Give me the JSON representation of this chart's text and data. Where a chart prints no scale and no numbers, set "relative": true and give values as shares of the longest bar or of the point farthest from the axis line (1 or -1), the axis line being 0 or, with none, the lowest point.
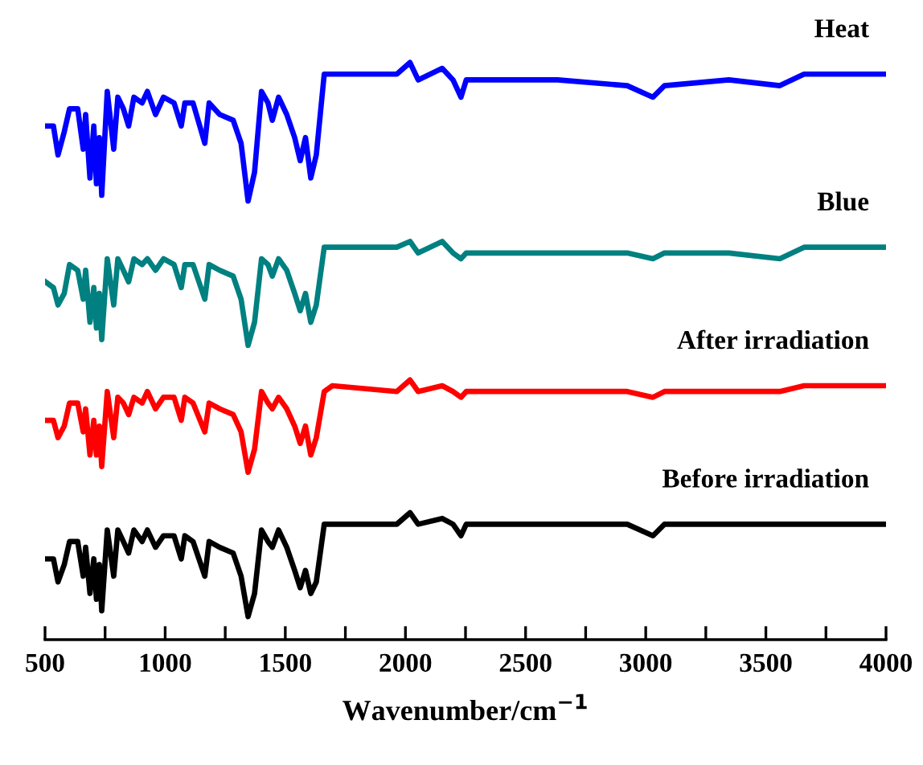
{
  "chart_data": {
    "type": "line",
    "relative": true,
    "xlabel": "Wavenumber/cm$^{−1}$",
    "x": [
      502,
      535,
      554,
      580,
      602,
      636,
      659,
      669,
      687,
      703,
      714,
      726,
      736,
      759,
      786,
      803,
      826,
      848,
      870,
      904,
      926,
      960,
      993,
      1037,
      1067,
      1082,
      1116,
      1165,
      1183,
      1227,
      1283,
      1316,
      1345,
      1372,
      1401,
      1428,
      1446,
      1472,
      1506,
      1539,
      1562,
      1584,
      1606,
      1629,
      1662,
      1696,
      1964,
      2019,
      2053,
      2153,
      2198,
      2231,
      2253,
      2633,
      2923,
      3030,
      3078,
      3346,
      3558,
      3659,
      3993
    ],
    "xlim": [
      500,
      4000
    ],
    "xticks": [
      500,
      {
        "value": 750,
        "label": null
      },
      1000,
      {
        "value": 1250,
        "label": null
      },
      1500,
      {
        "value": 1750,
        "label": null
      },
      2000,
      {
        "value": 2250,
        "label": null
      },
      2500,
      {
        "value": 2750,
        "label": null
      },
      3000,
      {
        "value": 3250,
        "label": null
      },
      3500,
      {
        "value": 3750,
        "label": null
      },
      4000
    ],
    "series": [
      {
        "name": "Heat",
        "color": "#0000ff",
        "values": [
          0.89,
          0.89,
          0.84,
          0.88,
          0.92,
          0.92,
          0.85,
          0.91,
          0.8,
          0.89,
          0.79,
          0.87,
          0.77,
          0.95,
          0.85,
          0.94,
          0.92,
          0.89,
          0.94,
          0.93,
          0.95,
          0.91,
          0.94,
          0.93,
          0.89,
          0.93,
          0.93,
          0.86,
          0.93,
          0.91,
          0.9,
          0.86,
          0.76,
          0.81,
          0.95,
          0.93,
          0.9,
          0.94,
          0.91,
          0.87,
          0.83,
          0.87,
          0.8,
          0.84,
          0.98,
          0.98,
          0.98,
          1.0,
          0.97,
          0.99,
          0.97,
          0.94,
          0.97,
          0.97,
          0.96,
          0.94,
          0.96,
          0.97,
          0.96,
          0.98,
          0.98
        ]
      },
      {
        "name": "Blue",
        "color": "#008080",
        "values": [
          0.62,
          0.61,
          0.58,
          0.6,
          0.65,
          0.64,
          0.59,
          0.64,
          0.55,
          0.61,
          0.54,
          0.6,
          0.52,
          0.66,
          0.58,
          0.66,
          0.64,
          0.62,
          0.66,
          0.65,
          0.66,
          0.64,
          0.66,
          0.65,
          0.61,
          0.65,
          0.65,
          0.59,
          0.65,
          0.64,
          0.63,
          0.59,
          0.51,
          0.55,
          0.66,
          0.65,
          0.63,
          0.66,
          0.64,
          0.6,
          0.57,
          0.6,
          0.55,
          0.58,
          0.68,
          0.68,
          0.68,
          0.69,
          0.67,
          0.69,
          0.67,
          0.66,
          0.67,
          0.67,
          0.67,
          0.66,
          0.67,
          0.67,
          0.66,
          0.68,
          0.68
        ]
      },
      {
        "name": "After irradiation",
        "color": "#ff0000",
        "values": [
          0.38,
          0.38,
          0.35,
          0.37,
          0.41,
          0.41,
          0.36,
          0.4,
          0.32,
          0.38,
          0.32,
          0.37,
          0.3,
          0.43,
          0.35,
          0.42,
          0.41,
          0.39,
          0.42,
          0.41,
          0.43,
          0.4,
          0.42,
          0.42,
          0.38,
          0.42,
          0.41,
          0.36,
          0.41,
          0.4,
          0.39,
          0.36,
          0.29,
          0.33,
          0.43,
          0.41,
          0.4,
          0.42,
          0.4,
          0.37,
          0.34,
          0.37,
          0.32,
          0.35,
          0.43,
          0.44,
          0.43,
          0.45,
          0.43,
          0.44,
          0.43,
          0.42,
          0.43,
          0.43,
          0.43,
          0.42,
          0.43,
          0.43,
          0.43,
          0.44,
          0.44
        ]
      },
      {
        "name": "Before irradiation",
        "color": "#000000",
        "values": [
          0.14,
          0.14,
          0.1,
          0.13,
          0.17,
          0.17,
          0.11,
          0.16,
          0.08,
          0.14,
          0.07,
          0.13,
          0.05,
          0.19,
          0.11,
          0.19,
          0.17,
          0.15,
          0.19,
          0.17,
          0.19,
          0.16,
          0.18,
          0.18,
          0.14,
          0.18,
          0.17,
          0.11,
          0.17,
          0.16,
          0.15,
          0.11,
          0.04,
          0.08,
          0.19,
          0.17,
          0.16,
          0.19,
          0.16,
          0.12,
          0.09,
          0.12,
          0.08,
          0.1,
          0.2,
          0.2,
          0.2,
          0.22,
          0.2,
          0.21,
          0.2,
          0.18,
          0.2,
          0.2,
          0.2,
          0.18,
          0.2,
          0.2,
          0.2,
          0.2,
          0.2
        ]
      }
    ]
  }
}
